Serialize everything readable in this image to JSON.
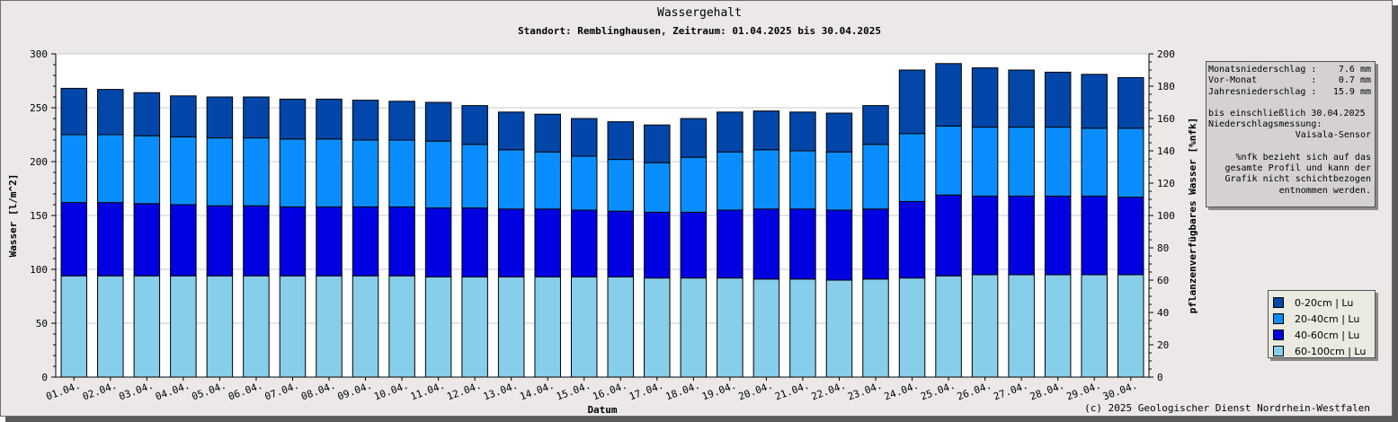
{
  "header": {
    "title": "Wassergehalt",
    "subtitle": "Standort: Remblinghausen, Zeitraum: 01.04.2025 bis 30.04.2025"
  },
  "footer": {
    "copyright": "(c) 2025 Geologischer Dienst Nordrhein-Westfalen"
  },
  "info": {
    "monatsniederschlag_label": "Monatsniederschlag :",
    "monatsniederschlag_value": "7.6 mm",
    "vormonat_label": "Vor-Monat          :",
    "vormonat_value": "0.7 mm",
    "jahresniederschlag_label": "Jahresniederschlag :",
    "jahresniederschlag_value": "15.9 mm",
    "line_until": "bis einschließlich 30.04.2025",
    "line_messung": "Niederschlagsmessung:",
    "line_sensor": "Vaisala-Sensor",
    "note_1": "%nfk bezieht sich auf das",
    "note_2": "gesamte Profil und kann der",
    "note_3": "Grafik nicht schichtbezogen",
    "note_4": "entnommen werden."
  },
  "chart_data": {
    "type": "bar",
    "stacked": true,
    "xlabel": "Datum",
    "ylabel": "Wasser [l/m^2]",
    "y2label": "pflanzenverfügbares Wasser [%nfk]",
    "ylim": [
      0,
      300
    ],
    "y2lim": [
      0,
      200
    ],
    "yticks": [
      0,
      50,
      100,
      150,
      200,
      250,
      300
    ],
    "y2ticks": [
      0,
      20,
      40,
      60,
      80,
      100,
      120,
      140,
      160,
      180,
      200
    ],
    "grid": true,
    "legend_position": "right",
    "categories": [
      "01.04.",
      "02.04.",
      "03.04.",
      "04.04.",
      "05.04.",
      "06.04.",
      "07.04.",
      "08.04.",
      "09.04.",
      "10.04.",
      "11.04.",
      "12.04.",
      "13.04.",
      "14.04.",
      "15.04.",
      "16.04.",
      "17.04.",
      "18.04.",
      "19.04.",
      "20.04.",
      "21.04.",
      "22.04.",
      "23.04.",
      "24.04.",
      "25.04.",
      "26.04.",
      "27.04.",
      "28.04.",
      "29.04.",
      "30.04."
    ],
    "series": [
      {
        "name": "60-100cm | Lu",
        "color": "#87ceeb",
        "values": [
          94,
          94,
          94,
          94,
          94,
          94,
          94,
          94,
          94,
          94,
          93,
          93,
          93,
          93,
          93,
          93,
          92,
          92,
          92,
          91,
          91,
          90,
          91,
          92,
          94,
          95,
          95,
          95,
          95,
          95
        ]
      },
      {
        "name": "40-60cm | Lu",
        "color": "#0000e0",
        "values": [
          68,
          68,
          67,
          66,
          65,
          65,
          64,
          64,
          64,
          64,
          64,
          64,
          63,
          63,
          62,
          61,
          61,
          61,
          63,
          65,
          65,
          65,
          65,
          71,
          75,
          73,
          73,
          73,
          73,
          72
        ]
      },
      {
        "name": "20-40cm | Lu",
        "color": "#0a8eff",
        "values": [
          63,
          63,
          63,
          63,
          63,
          63,
          63,
          63,
          62,
          62,
          62,
          59,
          55,
          53,
          50,
          48,
          46,
          51,
          54,
          55,
          54,
          54,
          60,
          63,
          64,
          64,
          64,
          64,
          63,
          64
        ]
      },
      {
        "name": "0-20cm | Lu",
        "color": "#0146a8",
        "values": [
          43,
          42,
          40,
          38,
          38,
          38,
          37,
          37,
          37,
          36,
          36,
          36,
          35,
          35,
          35,
          35,
          35,
          36,
          37,
          36,
          36,
          36,
          36,
          59,
          58,
          55,
          53,
          51,
          50,
          47
        ]
      }
    ]
  }
}
